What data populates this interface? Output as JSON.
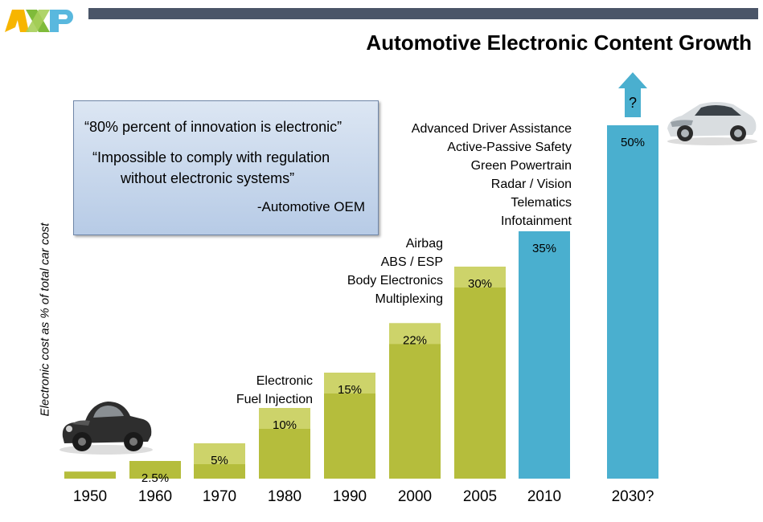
{
  "brand": {
    "logo_text": "NXP"
  },
  "title": "Automotive Electronic Content Growth",
  "quote": {
    "line1": "“80% percent of innovation is electronic”",
    "line2": "“Impossible to comply with regulation",
    "line3": "without electronic systems”",
    "attribution": "-Automotive OEM"
  },
  "annotations": {
    "e1980": [
      "Electronic",
      "Fuel Injection"
    ],
    "e2000": [
      "Airbag",
      "ABS / ESP",
      "Body Electronics",
      "Multiplexing"
    ],
    "e2010": [
      "Advanced Driver Assistance",
      "Active-Passive Safety",
      "Green Powertrain",
      "Radar / Vision",
      "Telematics",
      "Infotainment"
    ]
  },
  "chart_data": {
    "type": "bar",
    "title": "Automotive Electronic Content Growth",
    "ylabel": "Electronic cost as % of total car cost",
    "xlabel": "",
    "categories": [
      "1950",
      "1960",
      "1970",
      "1980",
      "1990",
      "2000",
      "2005",
      "2010",
      "2030?"
    ],
    "values": [
      1,
      2.5,
      5,
      10,
      15,
      22,
      30,
      35,
      50
    ],
    "value_labels": [
      "",
      "2.5%",
      "5%",
      "10%",
      "15%",
      "22%",
      "30%",
      "35%",
      "50%"
    ],
    "ylim": [
      0,
      50
    ],
    "grid": false,
    "colors": {
      "green": "#b5bd3c",
      "green_light": "#cdd36a",
      "blue": "#4aafcf"
    },
    "bar_colors": [
      "green",
      "green",
      "green",
      "green",
      "green",
      "green",
      "green",
      "blue",
      "blue"
    ],
    "future_marker": "?"
  }
}
